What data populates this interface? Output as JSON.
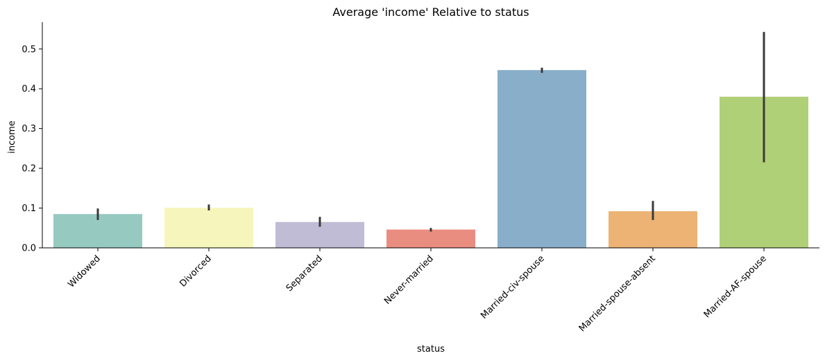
{
  "chart_data": {
    "type": "bar",
    "title": "Average 'income' Relative to status",
    "xlabel": "status",
    "ylabel": "income",
    "categories": [
      "Widowed",
      "Divorced",
      "Separated",
      "Never-married",
      "Married-civ-spouse",
      "Married-spouse-absent",
      "Married-AF-spouse"
    ],
    "values": [
      0.085,
      0.101,
      0.065,
      0.046,
      0.447,
      0.092,
      0.38
    ],
    "error_bars": [
      [
        0.07,
        0.099
      ],
      [
        0.094,
        0.109
      ],
      [
        0.053,
        0.078
      ],
      [
        0.041,
        0.05
      ],
      [
        0.44,
        0.453
      ],
      [
        0.07,
        0.118
      ],
      [
        0.215,
        0.543
      ]
    ],
    "colors": [
      "#96cac1",
      "#f6f6bc",
      "#c0bcd5",
      "#ea8d81",
      "#89aec9",
      "#ecb374",
      "#b0d077"
    ],
    "error_color": "#3a3a3a",
    "ylim": [
      0,
      0.5675
    ],
    "yticks": [
      0.0,
      0.1,
      0.2,
      0.3,
      0.4,
      0.5
    ],
    "ytick_labels": [
      "0.0",
      "0.1",
      "0.2",
      "0.3",
      "0.4",
      "0.5"
    ],
    "grid": false,
    "legend": "none"
  }
}
